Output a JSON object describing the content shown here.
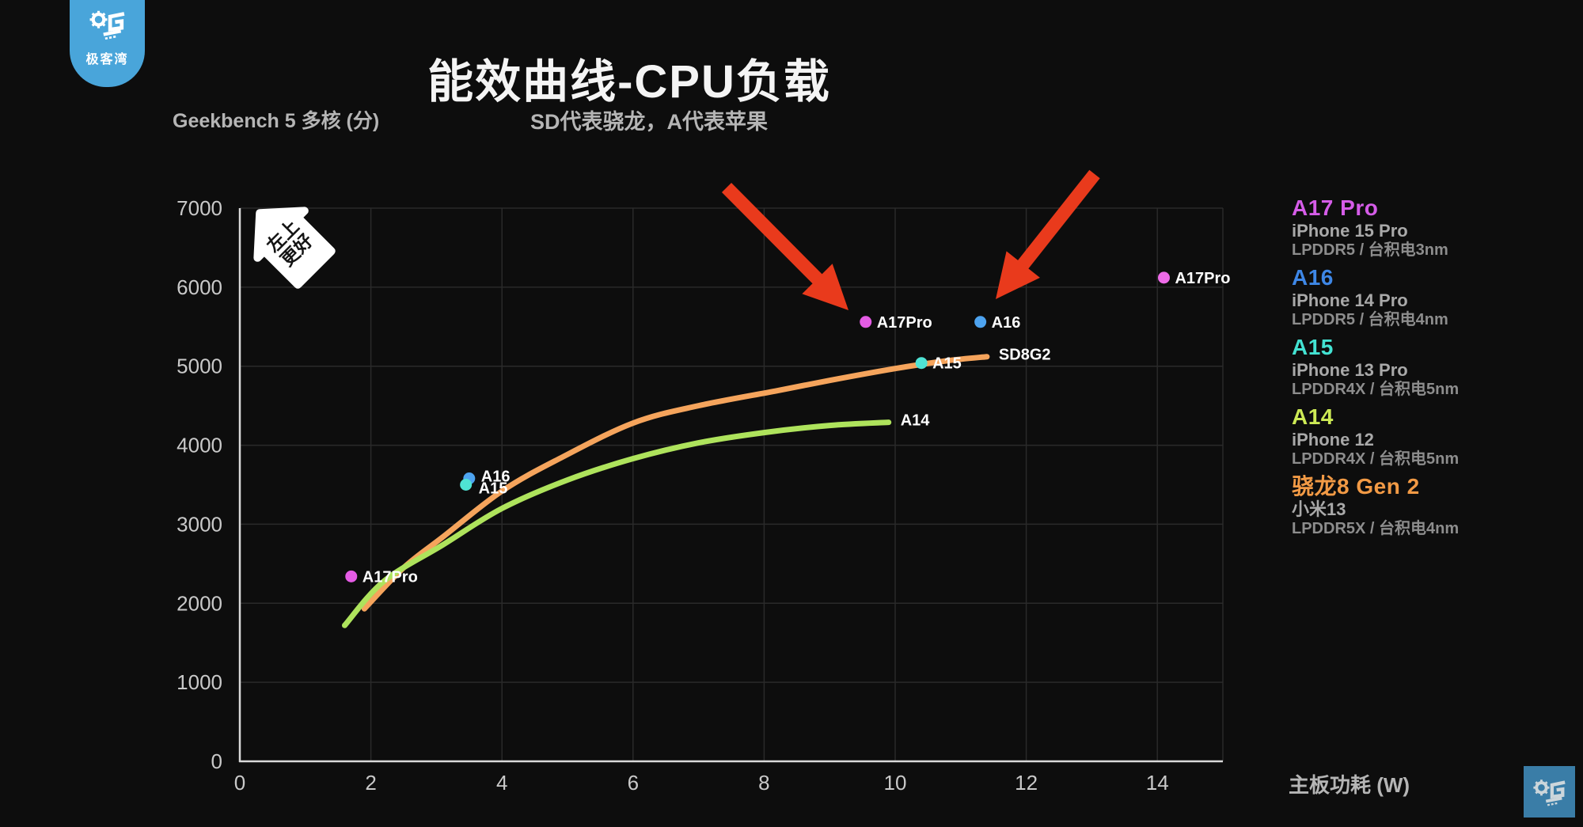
{
  "header": {
    "title": "能效曲线-CPU负载",
    "subtitle": "SD代表骁龙，A代表苹果"
  },
  "y_axis_title": "Geekbench 5 多核 (分)",
  "x_axis_title": "主板功耗 (W)",
  "watermark": {
    "brand": "极客湾"
  },
  "badge": {
    "line1": "左上",
    "line2": "更好"
  },
  "legend": {
    "items": [
      {
        "name": "A17 Pro",
        "color": "#d55ce8",
        "device": "iPhone 15 Pro",
        "memory": "LPDDR5 / 台积电3nm"
      },
      {
        "name": "A16",
        "color": "#3e87e6",
        "device": "iPhone 14 Pro",
        "memory": "LPDDR5 / 台积电4nm"
      },
      {
        "name": "A15",
        "color": "#43e2d2",
        "device": "iPhone 13 Pro",
        "memory": "LPDDR4X / 台积电5nm"
      },
      {
        "name": "A14",
        "color": "#cdea55",
        "device": "iPhone 12",
        "memory": "LPDDR4X / 台积电5nm"
      },
      {
        "name": "骁龙8 Gen 2",
        "color": "#f29a45",
        "device": "小米13",
        "memory": "LPDDR5X / 台积电4nm"
      }
    ]
  },
  "chart_data": {
    "type": "scatter",
    "title": "能效曲线-CPU负载",
    "subtitle": "SD代表骁龙，A代表苹果",
    "xlabel": "主板功耗 (W)",
    "ylabel": "Geekbench 5 多核 (分)",
    "xlim": [
      0,
      15
    ],
    "ylim": [
      0,
      7000
    ],
    "x_ticks": [
      0,
      2,
      4,
      6,
      8,
      10,
      12,
      14
    ],
    "y_ticks": [
      0,
      1000,
      2000,
      3000,
      4000,
      5000,
      6000,
      7000
    ],
    "grid": true,
    "legend_position": "right",
    "colors": {
      "grid": "#2a2a2a",
      "axis": "#d9d9d9",
      "tick": "#c9c9c9",
      "arrow": "#e93a1c"
    },
    "series": [
      {
        "name": "SD8G2",
        "chip": "骁龙8 Gen 2",
        "type": "line",
        "color": "#f5a45c",
        "end_label": "SD8G2",
        "label_offset": [
          15,
          4
        ],
        "points": [
          [
            1.9,
            1930
          ],
          [
            2.5,
            2450
          ],
          [
            3.1,
            2840
          ],
          [
            4,
            3420
          ],
          [
            4.9,
            3840
          ],
          [
            6,
            4280
          ],
          [
            7,
            4500
          ],
          [
            8.2,
            4690
          ],
          [
            9,
            4820
          ],
          [
            10,
            4970
          ],
          [
            10.8,
            5070
          ],
          [
            11.4,
            5120
          ]
        ]
      },
      {
        "name": "A14",
        "chip": "A14",
        "type": "line",
        "color": "#aee35c",
        "end_label": "A14",
        "label_offset": [
          15,
          4
        ],
        "points": [
          [
            1.6,
            1720
          ],
          [
            2.2,
            2280
          ],
          [
            3.1,
            2740
          ],
          [
            4,
            3200
          ],
          [
            5,
            3560
          ],
          [
            6,
            3830
          ],
          [
            7,
            4030
          ],
          [
            8,
            4160
          ],
          [
            9,
            4250
          ],
          [
            9.9,
            4290
          ]
        ]
      }
    ],
    "scatter": [
      {
        "label": "A17Pro",
        "chip": "A17 Pro",
        "x": 1.7,
        "y": 2340,
        "color": "#e55ce5",
        "label_offset": [
          14,
          7
        ]
      },
      {
        "label": "A16",
        "chip": "A16",
        "x": 3.5,
        "y": 3580,
        "color": "#4da3ef",
        "label_offset": [
          15,
          4
        ]
      },
      {
        "label": "A15",
        "chip": "A15",
        "x": 3.45,
        "y": 3500,
        "color": "#4fe3d4",
        "label_offset": [
          16,
          11
        ]
      },
      {
        "label": "A17Pro",
        "chip": "A17 Pro",
        "x": 9.55,
        "y": 5560,
        "color": "#e55ce5",
        "label_offset": [
          14,
          7
        ]
      },
      {
        "label": "A16",
        "chip": "A16",
        "x": 11.3,
        "y": 5560,
        "color": "#4da3ef",
        "label_offset": [
          14,
          7
        ]
      },
      {
        "label": "A15",
        "chip": "A15",
        "x": 10.4,
        "y": 5040,
        "color": "#4fe3d4",
        "label_offset": [
          14,
          7
        ]
      },
      {
        "label": "A17Pro",
        "chip": "A17 Pro",
        "x": 14.1,
        "y": 6120,
        "color": "#ee6be8",
        "label_offset": [
          14,
          7
        ]
      }
    ],
    "annotations": {
      "arrows": [
        {
          "from": [
            918,
            237
          ],
          "to": [
            1072,
            392
          ]
        },
        {
          "from": [
            1383,
            220
          ],
          "to": [
            1258,
            378
          ]
        }
      ]
    }
  }
}
